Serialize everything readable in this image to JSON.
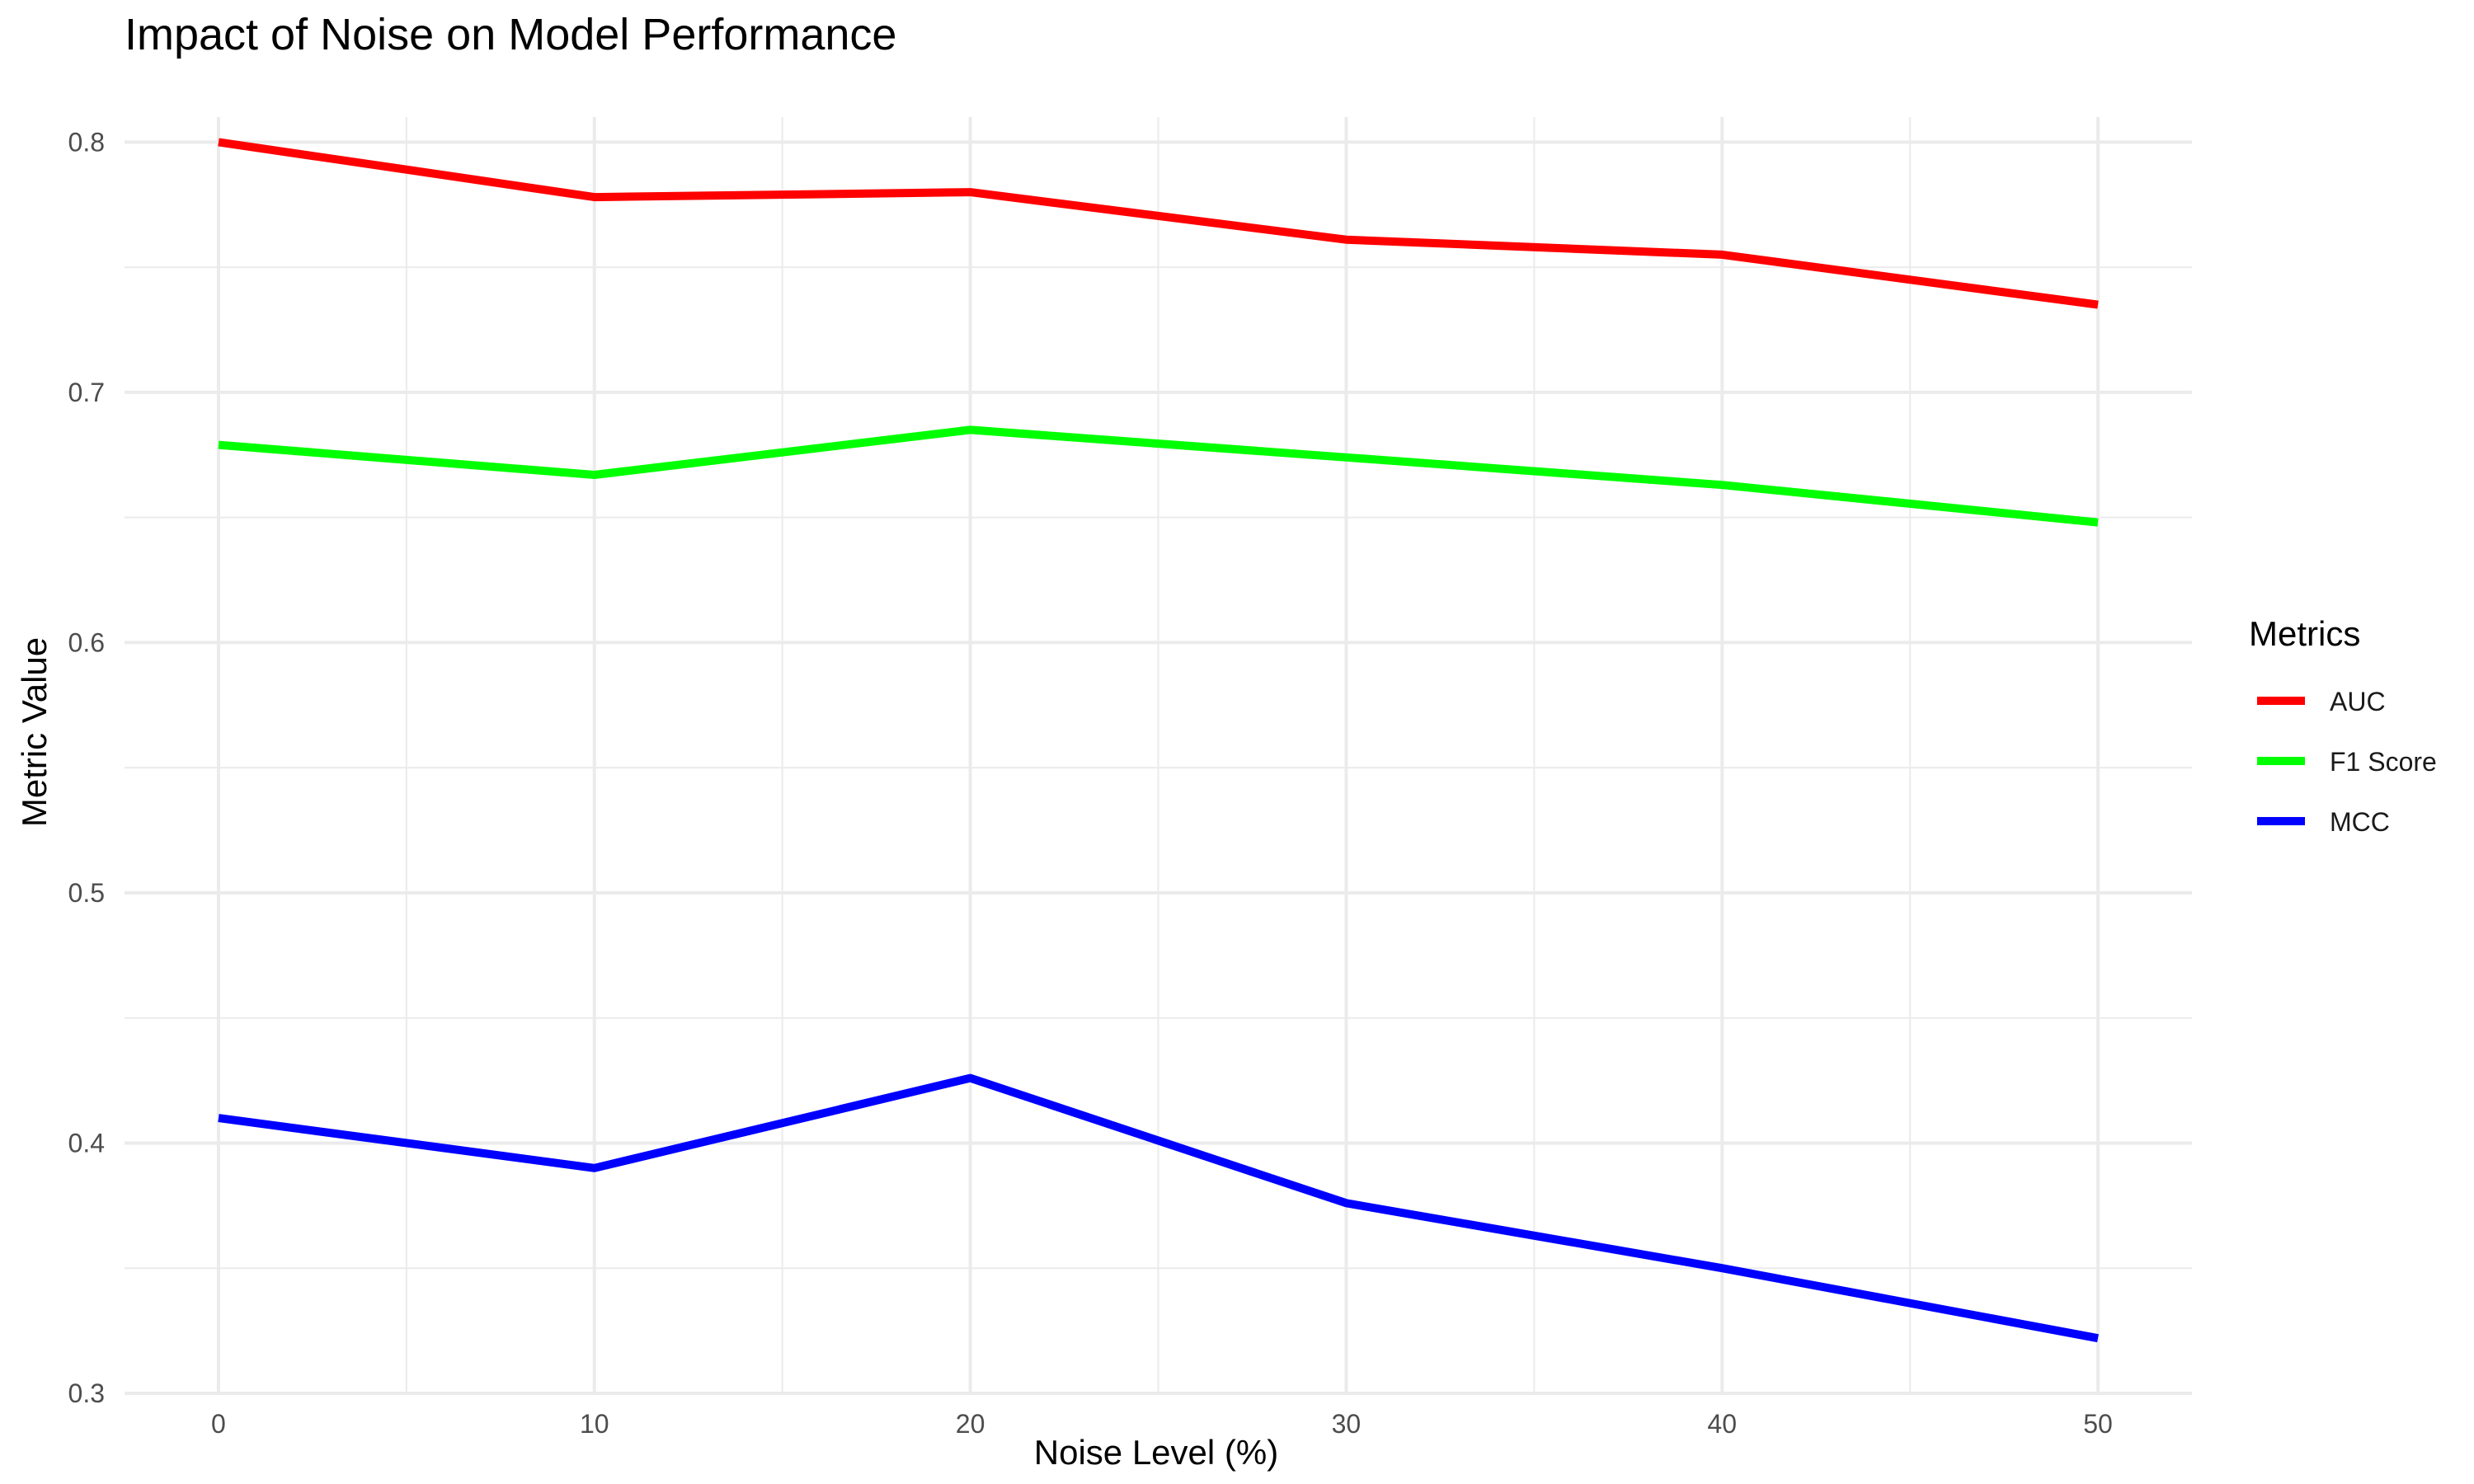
{
  "chart_data": {
    "type": "line",
    "title": "Impact of Noise on Model Performance",
    "xlabel": "Noise Level (%)",
    "ylabel": "Metric Value",
    "x": [
      0,
      10,
      20,
      30,
      40,
      50
    ],
    "xlim": [
      -2.5,
      52.5
    ],
    "ylim": [
      0.3,
      0.81
    ],
    "xticks": [
      0,
      10,
      20,
      30,
      40,
      50
    ],
    "yticks": [
      0.3,
      0.4,
      0.5,
      0.6,
      0.7,
      0.8
    ],
    "grid": true,
    "legend": {
      "title": "Metrics",
      "position": "right"
    },
    "series": [
      {
        "name": "AUC",
        "color": "#ff0000",
        "values": [
          0.8,
          0.778,
          0.78,
          0.761,
          0.755,
          0.735
        ]
      },
      {
        "name": "F1 Score",
        "color": "#00ff00",
        "values": [
          0.679,
          0.667,
          0.685,
          0.674,
          0.663,
          0.648
        ]
      },
      {
        "name": "MCC",
        "color": "#0000ff",
        "values": [
          0.41,
          0.39,
          0.426,
          0.376,
          0.35,
          0.322
        ]
      }
    ]
  }
}
